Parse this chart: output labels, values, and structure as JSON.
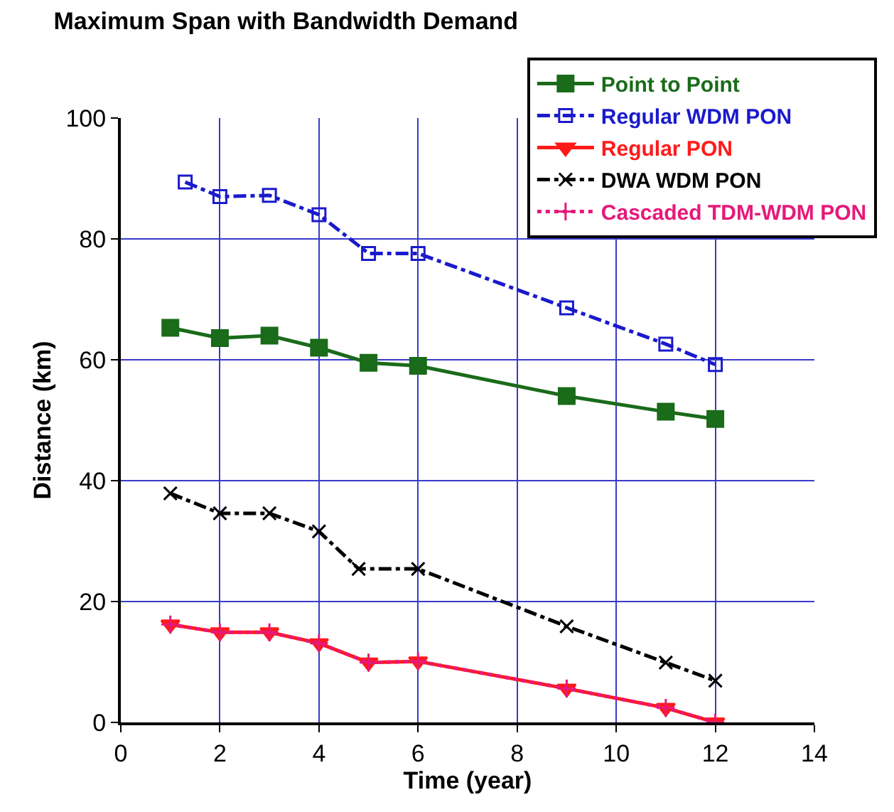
{
  "chart_data": {
    "type": "line",
    "title": "Maximum Span with Bandwidth Demand",
    "xlabel": "Time (year)",
    "ylabel": "Distance (km)",
    "x": [
      1,
      2,
      3,
      4,
      5,
      6,
      9,
      11,
      12
    ],
    "series": [
      {
        "name": "Point to Point",
        "color": "#1a6b1a",
        "marker": "square",
        "line_style": "solid",
        "values": [
          65.3,
          63.6,
          64,
          62,
          59.5,
          59,
          54,
          51.4,
          50.2
        ]
      },
      {
        "name": "Regular WDM PON",
        "color": "#1a1acc",
        "marker": "square",
        "line_style": "dashed",
        "x": [
          1.3,
          2,
          3,
          4,
          5,
          6,
          9,
          11,
          12
        ],
        "values": [
          89.4,
          87,
          87.2,
          84,
          77.6,
          77.6,
          68.6,
          62.6,
          59.2
        ]
      },
      {
        "name": "Regular PON",
        "color": "#ff1a1a",
        "marker": "triangle",
        "line_style": "solid",
        "values": [
          16.2,
          14.9,
          14.9,
          13.1,
          9.9,
          10.1,
          5.6,
          2.4,
          0
        ]
      },
      {
        "name": "DWA WDM PON",
        "color": "#000000",
        "marker": "cross",
        "line_style": "dashed",
        "x": [
          1,
          2,
          3,
          4,
          4.8,
          6,
          9,
          11,
          12
        ],
        "values": [
          37.9,
          34.6,
          34.6,
          31.6,
          25.4,
          25.4,
          15.9,
          9.9,
          6.9
        ]
      },
      {
        "name": "Cascaded TDM-WDM PON",
        "color": "#e6197a",
        "marker": "cross",
        "line_style": "dotted",
        "values": [
          16.2,
          14.9,
          14.9,
          13.1,
          9.9,
          10.1,
          5.6,
          2.4,
          0
        ]
      }
    ],
    "xlim": [
      0,
      14
    ],
    "xticks": [
      0,
      2,
      4,
      6,
      8,
      10,
      12,
      14
    ],
    "ylim": [
      0,
      100
    ],
    "yticks": [
      0,
      20,
      40,
      60,
      80,
      100
    ],
    "grid": true,
    "legend": "top right"
  }
}
